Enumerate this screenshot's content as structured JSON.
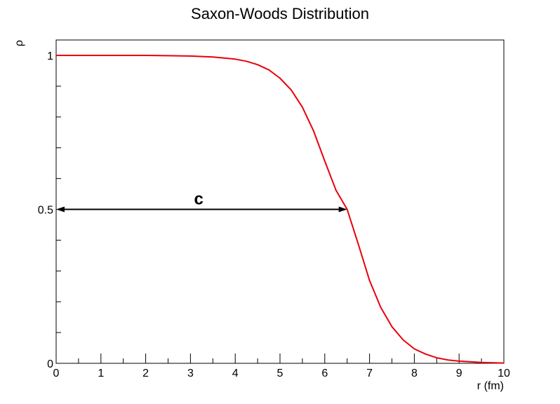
{
  "chart_data": {
    "type": "line",
    "title": "Saxon-Woods Distribution",
    "xlabel": "r (fm)",
    "ylabel": "ρ",
    "xlim": [
      0,
      10
    ],
    "ylim": [
      0,
      1.05
    ],
    "x_ticks": [
      "0",
      "1",
      "2",
      "3",
      "4",
      "5",
      "6",
      "7",
      "8",
      "9",
      "10"
    ],
    "y_ticks": [
      {
        "value": 0,
        "label": "0"
      },
      {
        "value": 0.5,
        "label": "0.5"
      },
      {
        "value": 1,
        "label": "1"
      }
    ],
    "grid": false,
    "series": [
      {
        "color": "#e8000b",
        "x": [
          0,
          0.5,
          1,
          1.5,
          2,
          2.5,
          3,
          3.5,
          4,
          4.25,
          4.5,
          4.75,
          5,
          5.25,
          5.5,
          5.75,
          6,
          6.25,
          6.5,
          6.75,
          7,
          7.25,
          7.5,
          7.75,
          8,
          8.25,
          8.5,
          8.75,
          9,
          9.5,
          10
        ],
        "y": [
          1.0,
          1.0,
          1.0,
          1.0,
          1.0,
          0.999,
          0.998,
          0.995,
          0.988,
          0.981,
          0.97,
          0.953,
          0.926,
          0.888,
          0.832,
          0.755,
          0.657,
          0.562,
          0.5,
          0.386,
          0.269,
          0.182,
          0.119,
          0.076,
          0.047,
          0.03,
          0.018,
          0.011,
          0.007,
          0.003,
          0.001
        ]
      }
    ],
    "annotations": [
      {
        "text": "c",
        "from_x": 0,
        "to_x": 6.5,
        "y": 0.5,
        "style": "double-arrow"
      }
    ]
  }
}
